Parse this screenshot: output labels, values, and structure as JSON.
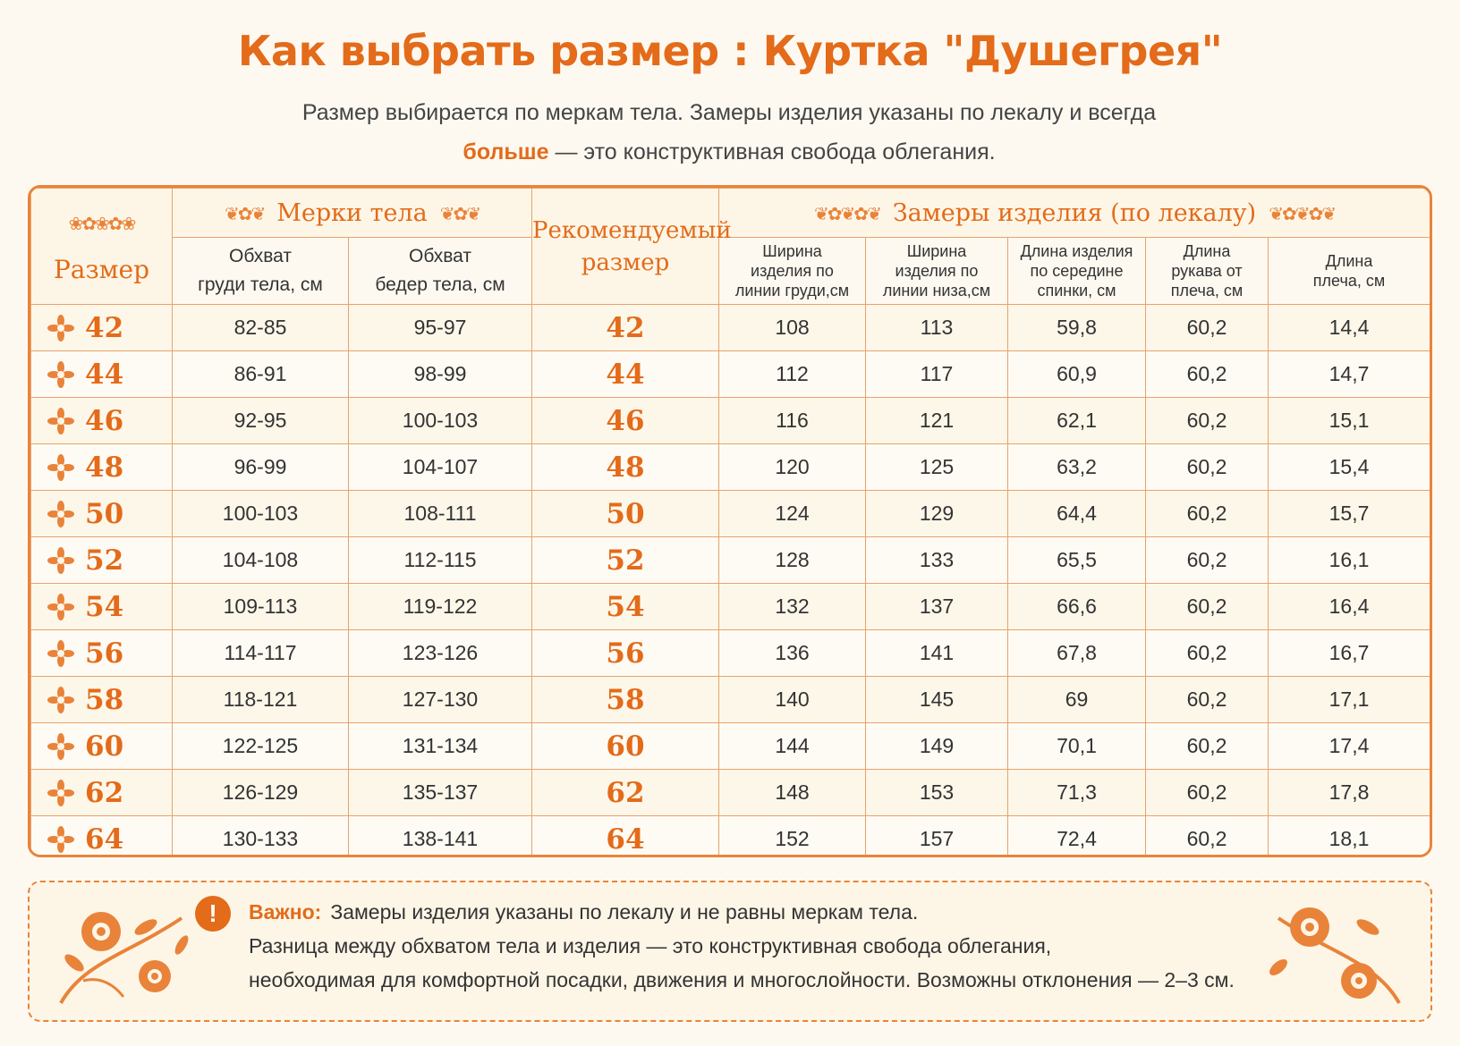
{
  "title": "Как выбрать размер :  Куртка \"Душегрея\"",
  "subtitle": {
    "line1": "Размер выбирается по меркам тела. Замеры изделия указаны по лекалу и всегда",
    "emphasis": "больше",
    "line2_rest": " — это конструктивная свобода облегания."
  },
  "table": {
    "size_header": "Размер",
    "body_group": "Мерки тела",
    "rec_header_l1": "Рекомендуемый",
    "rec_header_l2": "размер",
    "product_group": "Замеры изделия (по лекалу)",
    "body_cols": [
      {
        "l1": "Обхват",
        "l2": "груди тела, см"
      },
      {
        "l1": "Обхват",
        "l2": "бедер тела, см"
      }
    ],
    "product_cols": [
      {
        "l1": "Ширина",
        "l2": "изделия по",
        "l3": "линии груди,см"
      },
      {
        "l1": "Ширина",
        "l2": "изделия по",
        "l3": "линии низа,см"
      },
      {
        "l1": "Длина изделия",
        "l2": "по середине",
        "l3": "спинки, см"
      },
      {
        "l1": "Длина",
        "l2": "рукава от",
        "l3": "плеча, см"
      },
      {
        "l1": "Длина",
        "l2": "плеча, см",
        "l3": ""
      }
    ],
    "rows": [
      {
        "size": "42",
        "chest": "82-85",
        "hips": "95-97",
        "rec": "42",
        "w_chest": "108",
        "w_bottom": "113",
        "back_len": "59,8",
        "sleeve": "60,2",
        "shoulder": "14,4"
      },
      {
        "size": "44",
        "chest": "86-91",
        "hips": "98-99",
        "rec": "44",
        "w_chest": "112",
        "w_bottom": "117",
        "back_len": "60,9",
        "sleeve": "60,2",
        "shoulder": "14,7"
      },
      {
        "size": "46",
        "chest": "92-95",
        "hips": "100-103",
        "rec": "46",
        "w_chest": "116",
        "w_bottom": "121",
        "back_len": "62,1",
        "sleeve": "60,2",
        "shoulder": "15,1"
      },
      {
        "size": "48",
        "chest": "96-99",
        "hips": "104-107",
        "rec": "48",
        "w_chest": "120",
        "w_bottom": "125",
        "back_len": "63,2",
        "sleeve": "60,2",
        "shoulder": "15,4"
      },
      {
        "size": "50",
        "chest": "100-103",
        "hips": "108-111",
        "rec": "50",
        "w_chest": "124",
        "w_bottom": "129",
        "back_len": "64,4",
        "sleeve": "60,2",
        "shoulder": "15,7"
      },
      {
        "size": "52",
        "chest": "104-108",
        "hips": "112-115",
        "rec": "52",
        "w_chest": "128",
        "w_bottom": "133",
        "back_len": "65,5",
        "sleeve": "60,2",
        "shoulder": "16,1"
      },
      {
        "size": "54",
        "chest": "109-113",
        "hips": "119-122",
        "rec": "54",
        "w_chest": "132",
        "w_bottom": "137",
        "back_len": "66,6",
        "sleeve": "60,2",
        "shoulder": "16,4"
      },
      {
        "size": "56",
        "chest": "114-117",
        "hips": "123-126",
        "rec": "56",
        "w_chest": "136",
        "w_bottom": "141",
        "back_len": "67,8",
        "sleeve": "60,2",
        "shoulder": "16,7"
      },
      {
        "size": "58",
        "chest": "118-121",
        "hips": "127-130",
        "rec": "58",
        "w_chest": "140",
        "w_bottom": "145",
        "back_len": "69",
        "sleeve": "60,2",
        "shoulder": "17,1"
      },
      {
        "size": "60",
        "chest": "122-125",
        "hips": "131-134",
        "rec": "60",
        "w_chest": "144",
        "w_bottom": "149",
        "back_len": "70,1",
        "sleeve": "60,2",
        "shoulder": "17,4"
      },
      {
        "size": "62",
        "chest": "126-129",
        "hips": "135-137",
        "rec": "62",
        "w_chest": "148",
        "w_bottom": "153",
        "back_len": "71,3",
        "sleeve": "60,2",
        "shoulder": "17,8"
      },
      {
        "size": "64",
        "chest": "130-133",
        "hips": "138-141",
        "rec": "64",
        "w_chest": "152",
        "w_bottom": "157",
        "back_len": "72,4",
        "sleeve": "60,2",
        "shoulder": "18,1"
      }
    ]
  },
  "note": {
    "icon": "!",
    "label": "Важно:",
    "line1": "Замеры изделия указаны по лекалу и не равны меркам тела.",
    "line2": "Разница между обхватом тела и изделия — это конструктивная свобода облегания,",
    "line3": "необходимая для комфортной посадки, движения и многослойности. Возможны отклонения — 2–3 см."
  },
  "colors": {
    "accent": "#e36b1a",
    "border": "#e9833a",
    "background": "#fdf9f1"
  }
}
